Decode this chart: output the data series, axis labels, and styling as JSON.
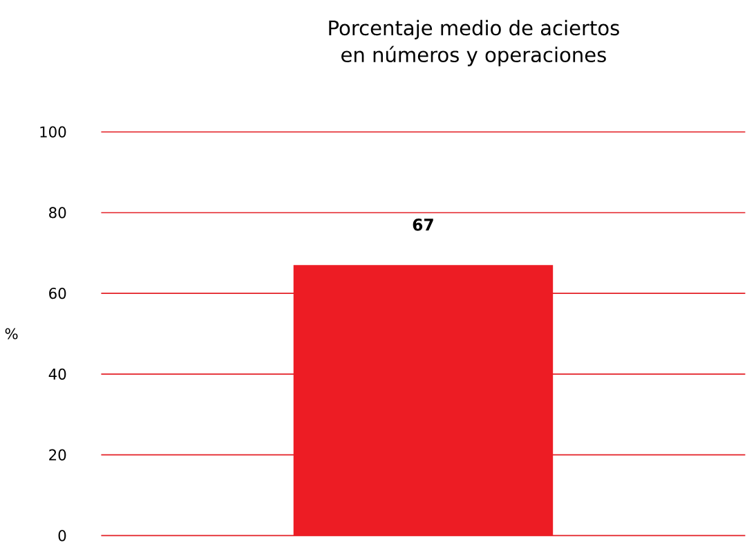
{
  "chart_data": {
    "type": "bar",
    "title": "Porcentaje medio de aciertos\nen números y operaciones",
    "ylabel": "%",
    "categories": [
      null
    ],
    "values": [
      67
    ],
    "color": "#ed1c24",
    "ylim": [
      0,
      100
    ],
    "yticks": [
      0,
      20,
      40,
      60,
      80,
      100
    ],
    "grid": "y",
    "data_labels": true
  }
}
